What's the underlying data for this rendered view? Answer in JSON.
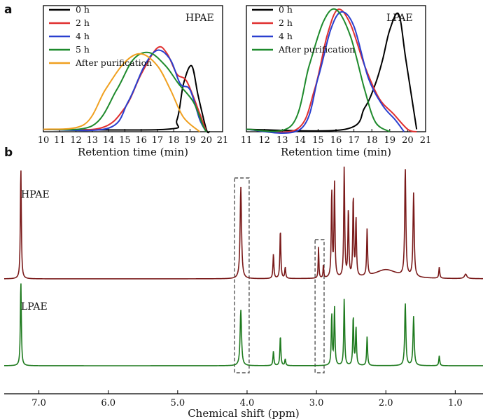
{
  "panels": {
    "a": "a",
    "b": "b"
  },
  "chart_data": [
    {
      "type": "line",
      "tag": "HPAE",
      "xlabel": "Retention time (min)",
      "xlim": [
        10,
        21
      ],
      "ticks": [
        "10",
        "11",
        "12",
        "13",
        "14",
        "15",
        "16",
        "17",
        "18",
        "19",
        "20",
        "21"
      ],
      "legend_position": "top-left",
      "series": [
        {
          "name": "0 h",
          "color": "#000000",
          "x": [
            10,
            17.5,
            18.2,
            18.6,
            19.1,
            19.5,
            20.0,
            20.2
          ],
          "y": [
            0.02,
            0.02,
            0.1,
            0.4,
            0.55,
            0.3,
            0.02,
            0.0
          ]
        },
        {
          "name": "2 h",
          "color": "#e03030",
          "x": [
            10,
            13.5,
            15.0,
            16.0,
            17.0,
            17.6,
            18.2,
            18.8,
            19.6,
            20.0
          ],
          "y": [
            0.02,
            0.03,
            0.2,
            0.48,
            0.7,
            0.65,
            0.48,
            0.42,
            0.15,
            0.0
          ]
        },
        {
          "name": "4 h",
          "color": "#2a3fcf",
          "x": [
            10,
            14.0,
            15.2,
            16.2,
            17.0,
            17.8,
            18.4,
            19.0,
            19.6,
            20.0
          ],
          "y": [
            0.02,
            0.03,
            0.25,
            0.55,
            0.68,
            0.6,
            0.4,
            0.35,
            0.1,
            0.0
          ]
        },
        {
          "name": "5 h",
          "color": "#1e8a2c",
          "x": [
            10,
            13.0,
            14.5,
            15.5,
            16.5,
            17.5,
            18.3,
            19.2,
            19.8,
            20.0
          ],
          "y": [
            0.02,
            0.05,
            0.35,
            0.6,
            0.66,
            0.55,
            0.4,
            0.25,
            0.05,
            0.0
          ]
        },
        {
          "name": "After purification",
          "color": "#f0a020",
          "x": [
            10,
            12.5,
            13.8,
            15.0,
            16.0,
            17.0,
            17.8,
            18.6,
            19.6
          ],
          "y": [
            0.02,
            0.06,
            0.35,
            0.58,
            0.65,
            0.55,
            0.35,
            0.12,
            0.0
          ]
        }
      ]
    },
    {
      "type": "line",
      "tag": "LPAE",
      "xlabel": "Retention time (min)",
      "xlim": [
        11,
        21
      ],
      "ticks": [
        "11",
        "12",
        "13",
        "14",
        "15",
        "16",
        "17",
        "18",
        "19",
        "20",
        "21"
      ],
      "legend_position": "top-left",
      "series": [
        {
          "name": "0 h",
          "color": "#000000",
          "x": [
            11,
            16.5,
            17.6,
            18.2,
            18.6,
            19.0,
            19.5,
            19.9,
            20.5
          ],
          "y": [
            0.02,
            0.02,
            0.2,
            0.4,
            0.6,
            0.85,
            0.98,
            0.6,
            0.02
          ]
        },
        {
          "name": "2 h",
          "color": "#e03030",
          "x": [
            11,
            13.8,
            14.8,
            15.5,
            16.1,
            16.8,
            17.6,
            18.4,
            19.2,
            20.0,
            20.5
          ],
          "y": [
            0.02,
            0.02,
            0.35,
            0.8,
            1.02,
            0.9,
            0.55,
            0.28,
            0.15,
            0.02,
            0.0
          ]
        },
        {
          "name": "4 h",
          "color": "#2a3fcf",
          "x": [
            11,
            14.0,
            15.0,
            15.7,
            16.3,
            17.0,
            17.8,
            18.6,
            19.3,
            19.8
          ],
          "y": [
            0.02,
            0.02,
            0.45,
            0.85,
            1.0,
            0.88,
            0.45,
            0.22,
            0.1,
            0.0
          ]
        },
        {
          "name": "After purification",
          "color": "#1e8a2c",
          "x": [
            11,
            13.5,
            14.5,
            15.3,
            16.0,
            16.8,
            17.6,
            18.2,
            19.0
          ],
          "y": [
            0.02,
            0.05,
            0.55,
            0.92,
            1.02,
            0.8,
            0.35,
            0.08,
            0.0
          ]
        }
      ]
    },
    {
      "type": "line",
      "xlabel": "Chemical shift (ppm)",
      "xlim": [
        7.5,
        0.6
      ],
      "ticks": [
        "7.0",
        "6.0",
        "5.0",
        "4.0",
        "3.0",
        "2.0",
        "1.0"
      ],
      "tick_values": [
        7.0,
        6.0,
        5.0,
        4.0,
        3.0,
        2.0,
        1.0
      ],
      "series": [
        {
          "name": "HPAE",
          "color": "#7a1a1a",
          "peaks": [
            [
              7.26,
              1.0,
              0.008
            ],
            [
              4.09,
              0.82,
              0.012
            ],
            [
              3.62,
              0.22,
              0.008
            ],
            [
              3.52,
              0.44,
              0.008
            ],
            [
              3.45,
              0.1,
              0.008
            ],
            [
              2.97,
              0.28,
              0.006
            ],
            [
              2.9,
              0.12,
              0.006
            ],
            [
              2.78,
              0.78,
              0.008
            ],
            [
              2.74,
              0.85,
              0.008
            ],
            [
              2.6,
              0.99,
              0.008
            ],
            [
              2.54,
              0.6,
              0.008
            ],
            [
              2.47,
              0.72,
              0.008
            ],
            [
              2.43,
              0.52,
              0.008
            ],
            [
              2.27,
              0.42,
              0.008
            ],
            [
              1.72,
              0.96,
              0.01
            ],
            [
              1.6,
              0.75,
              0.01
            ],
            [
              1.23,
              0.1,
              0.008
            ],
            [
              0.85,
              0.04,
              0.02
            ],
            [
              2.0,
              0.08,
              0.2
            ]
          ]
        },
        {
          "name": "LPAE",
          "color": "#1e7a1e",
          "peaks": [
            [
              7.26,
              0.76,
              0.008
            ],
            [
              4.09,
              0.5,
              0.012
            ],
            [
              3.62,
              0.13,
              0.008
            ],
            [
              3.52,
              0.27,
              0.008
            ],
            [
              3.45,
              0.06,
              0.008
            ],
            [
              2.78,
              0.46,
              0.008
            ],
            [
              2.74,
              0.52,
              0.008
            ],
            [
              2.6,
              0.6,
              0.008
            ],
            [
              2.47,
              0.44,
              0.008
            ],
            [
              2.43,
              0.34,
              0.008
            ],
            [
              2.27,
              0.26,
              0.008
            ],
            [
              1.72,
              0.56,
              0.01
            ],
            [
              1.6,
              0.44,
              0.01
            ],
            [
              1.23,
              0.09,
              0.008
            ]
          ]
        }
      ],
      "highlight_boxes": [
        {
          "from": 4.18,
          "to": 3.97
        },
        {
          "from": 3.02,
          "to": 2.89
        }
      ]
    }
  ]
}
